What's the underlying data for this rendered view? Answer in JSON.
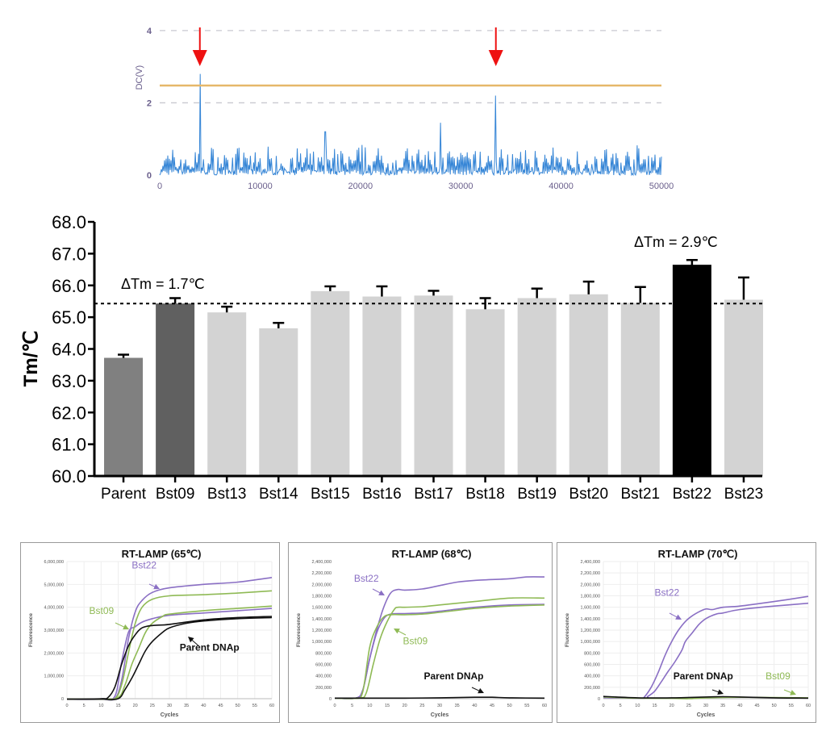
{
  "colors": {
    "signal_line": "#1f78d1",
    "signal_line_light": "#7fb6ea",
    "threshold": "#e6b86a",
    "arrow_red": "#ee1111",
    "axis_purple": "#6a5f8c",
    "bar_parent": "#808080",
    "bar_bst09": "#606060",
    "bar_default": "#d3d3d3",
    "bar_bst22": "#000000",
    "bst22_purple": "#8a6fc4",
    "bst09_green": "#8fba55",
    "parent_black": "#111111"
  },
  "chart_data": [
    {
      "id": "signal",
      "type": "line",
      "title": "",
      "xlabel": "",
      "ylabel": "DC(V)",
      "xlim": [
        0,
        50000
      ],
      "ylim": [
        0,
        4.4
      ],
      "xticks": [
        0,
        10000,
        20000,
        30000,
        40000,
        50000
      ],
      "xtick_labels": [
        "0",
        "10000",
        "20000",
        "30000",
        "40000",
        "50000"
      ],
      "yticks": [
        0,
        2,
        4
      ],
      "ytick_labels": [
        "0",
        "2",
        "4"
      ],
      "grid": "horizontal-dashed",
      "threshold": 2.48,
      "noise_baseline_max": 0.9,
      "peaks": [
        {
          "x": 4000,
          "y": 2.8,
          "marked": true
        },
        {
          "x": 16500,
          "y": 1.2,
          "marked": false
        },
        {
          "x": 28000,
          "y": 1.45,
          "marked": false
        },
        {
          "x": 33500,
          "y": 2.2,
          "marked": true
        }
      ]
    },
    {
      "id": "tm-bars",
      "type": "bar",
      "title": "",
      "xlabel": "",
      "ylabel": "Tm/℃",
      "ylim": [
        60,
        68
      ],
      "yticks": [
        60,
        61,
        62,
        63,
        64,
        65,
        66,
        67,
        68
      ],
      "ytick_labels": [
        "60.0",
        "61.0",
        "62.0",
        "63.0",
        "64.0",
        "65.0",
        "66.0",
        "67.0",
        "68.0"
      ],
      "categories": [
        "Parent",
        "Bst09",
        "Bst13",
        "Bst14",
        "Bst15",
        "Bst16",
        "Bst17",
        "Bst18",
        "Bst19",
        "Bst20",
        "Bst21",
        "Bst22",
        "Bst23"
      ],
      "values": [
        63.72,
        65.43,
        65.15,
        64.65,
        65.82,
        65.65,
        65.68,
        65.25,
        65.6,
        65.72,
        65.45,
        66.65,
        65.55
      ],
      "errors": [
        0.1,
        0.17,
        0.18,
        0.17,
        0.15,
        0.32,
        0.15,
        0.35,
        0.3,
        0.4,
        0.5,
        0.15,
        0.7
      ],
      "bar_color_keys": [
        "bar_parent",
        "bar_bst09",
        "bar_default",
        "bar_default",
        "bar_default",
        "bar_default",
        "bar_default",
        "bar_default",
        "bar_default",
        "bar_default",
        "bar_default",
        "bar_bst22",
        "bar_default"
      ],
      "reference_line": 65.43,
      "annotations": [
        {
          "text": "ΔTm = 1.7℃",
          "near": "Bst09"
        },
        {
          "text": "ΔTm = 2.9℃",
          "near": "Bst22"
        }
      ],
      "grid": false
    },
    {
      "id": "lamp65",
      "type": "line",
      "title": "RT-LAMP (65℃)",
      "xlabel": "Cycles",
      "ylabel": "Fluorescence",
      "xlim": [
        0,
        60
      ],
      "ylim": [
        0,
        6000000
      ],
      "xticks": [
        0,
        5,
        10,
        15,
        20,
        25,
        30,
        35,
        40,
        45,
        50,
        55,
        60
      ],
      "yticks": [
        0,
        1000000,
        2000000,
        3000000,
        4000000,
        5000000,
        6000000
      ],
      "ytick_labels": [
        "0",
        "1,000,000",
        "2,000,000",
        "3,000,000",
        "4,000,000",
        "5,000,000",
        "6,000,000"
      ],
      "grid": true,
      "series": [
        {
          "name": "Bst22",
          "color_key": "bst22_purple",
          "x": [
            0,
            10,
            14,
            16,
            18,
            20,
            22,
            25,
            30,
            40,
            50,
            60
          ],
          "y": [
            -20000,
            -20000,
            0,
            800000,
            2600000,
            3800000,
            4300000,
            4650000,
            4850000,
            5000000,
            5100000,
            5300000
          ]
        },
        {
          "name": "Bst22",
          "color_key": "bst22_purple",
          "x": [
            0,
            10,
            14,
            16,
            18,
            20,
            22,
            25,
            30,
            40,
            50,
            60
          ],
          "y": [
            -20000,
            -20000,
            100000,
            1600000,
            2900000,
            3150000,
            3350000,
            3500000,
            3650000,
            3750000,
            3850000,
            3950000
          ]
        },
        {
          "name": "Bst09",
          "color_key": "bst09_green",
          "x": [
            0,
            10,
            14,
            16,
            18,
            20,
            22,
            25,
            30,
            40,
            50,
            60
          ],
          "y": [
            -20000,
            -20000,
            0,
            600000,
            2000000,
            3300000,
            4000000,
            4350000,
            4500000,
            4550000,
            4620000,
            4720000
          ]
        },
        {
          "name": "Bst09",
          "color_key": "bst09_green",
          "x": [
            0,
            10,
            15,
            17,
            19,
            21,
            23,
            25,
            28,
            30,
            40,
            50,
            60
          ],
          "y": [
            -20000,
            -20000,
            50000,
            600000,
            1500000,
            2200000,
            2900000,
            3300000,
            3600000,
            3700000,
            3850000,
            3950000,
            4050000
          ]
        },
        {
          "name": "Parent DNAp",
          "color_key": "parent_black",
          "x": [
            0,
            10,
            12,
            14,
            16,
            18,
            20,
            22,
            25,
            30,
            40,
            50,
            60
          ],
          "y": [
            -20000,
            0,
            50000,
            500000,
            1500000,
            2300000,
            2800000,
            3100000,
            3200000,
            3250000,
            3450000,
            3550000,
            3600000
          ]
        },
        {
          "name": "Parent DNAp",
          "color_key": "parent_black",
          "x": [
            0,
            10,
            15,
            17,
            19,
            21,
            23,
            25,
            28,
            30,
            35,
            40,
            50,
            60
          ],
          "y": [
            -20000,
            -20000,
            0,
            400000,
            900000,
            1500000,
            2100000,
            2500000,
            2900000,
            3100000,
            3300000,
            3400000,
            3500000,
            3550000
          ]
        }
      ],
      "labels": [
        {
          "text": "Bst22",
          "color_key": "bst22_purple",
          "x": 19,
          "y": 5700000
        },
        {
          "text": "Bst09",
          "color_key": "bst09_green",
          "x": 6.5,
          "y": 3700000
        },
        {
          "text": "Parent DNAp",
          "color_key": "parent_black",
          "x": 33,
          "y": 2100000
        }
      ]
    },
    {
      "id": "lamp68",
      "type": "line",
      "title": "RT-LAMP (68℃)",
      "xlabel": "Cycles",
      "ylabel": "Fluorescence",
      "xlim": [
        0,
        60
      ],
      "ylim": [
        0,
        2400000
      ],
      "xticks": [
        0,
        5,
        10,
        15,
        20,
        25,
        30,
        35,
        40,
        45,
        50,
        55,
        60
      ],
      "yticks": [
        0,
        200000,
        400000,
        600000,
        800000,
        1000000,
        1200000,
        1400000,
        1600000,
        1800000,
        2000000,
        2200000,
        2400000
      ],
      "ytick_labels": [
        "0",
        "200,000",
        "400,000",
        "600,000",
        "800,000",
        "1,000,000",
        "1,200,000",
        "1,400,000",
        "1,600,000",
        "1,800,000",
        "2,000,000",
        "2,200,000",
        "2,400,000"
      ],
      "grid": false,
      "series": [
        {
          "name": "Bst22",
          "color_key": "bst22_purple",
          "x": [
            0,
            6,
            8,
            10,
            12,
            14,
            16,
            18,
            20,
            25,
            30,
            35,
            40,
            50,
            55,
            60
          ],
          "y": [
            10000,
            10000,
            150000,
            700000,
            1200000,
            1600000,
            1850000,
            1910000,
            1900000,
            1920000,
            1980000,
            2040000,
            2070000,
            2100000,
            2130000,
            2130000
          ]
        },
        {
          "name": "Bst22",
          "color_key": "bst22_purple",
          "x": [
            0,
            6,
            8,
            10,
            12,
            14,
            16,
            20,
            25,
            30,
            40,
            50,
            60
          ],
          "y": [
            10000,
            10000,
            150000,
            700000,
            1150000,
            1400000,
            1480000,
            1490000,
            1500000,
            1530000,
            1600000,
            1640000,
            1650000
          ]
        },
        {
          "name": "Bst09",
          "color_key": "bst09_green",
          "x": [
            0,
            7,
            9,
            11,
            13,
            15,
            17,
            18,
            20,
            25,
            30,
            40,
            50,
            60
          ],
          "y": [
            10000,
            10000,
            100000,
            600000,
            1050000,
            1350000,
            1560000,
            1600000,
            1600000,
            1610000,
            1640000,
            1700000,
            1760000,
            1760000
          ]
        },
        {
          "name": "Bst09",
          "color_key": "bst09_green",
          "x": [
            0,
            6,
            8,
            10,
            12,
            14,
            16,
            20,
            25,
            30,
            40,
            50,
            60
          ],
          "y": [
            10000,
            10000,
            120000,
            900000,
            1250000,
            1430000,
            1470000,
            1470000,
            1480000,
            1510000,
            1580000,
            1620000,
            1640000
          ]
        },
        {
          "name": "Parent DNAp",
          "color_key": "parent_black",
          "x": [
            0,
            10,
            20,
            30,
            40,
            45,
            50,
            60
          ],
          "y": [
            10000,
            10000,
            10000,
            15000,
            25000,
            25000,
            15000,
            10000
          ]
        }
      ],
      "labels": [
        {
          "text": "Bst22",
          "color_key": "bst22_purple",
          "x": 5.5,
          "y": 2050000
        },
        {
          "text": "Bst09",
          "color_key": "bst09_green",
          "x": 19.5,
          "y": 950000
        },
        {
          "text": "Parent DNAp",
          "color_key": "parent_black",
          "x": 25.5,
          "y": 340000
        }
      ]
    },
    {
      "id": "lamp70",
      "type": "line",
      "title": "RT-LAMP (70℃)",
      "xlabel": "Cycles",
      "ylabel": "Fluorescence",
      "xlim": [
        0,
        60
      ],
      "ylim": [
        0,
        2400000
      ],
      "xticks": [
        0,
        5,
        10,
        15,
        20,
        25,
        30,
        35,
        40,
        45,
        50,
        55,
        60
      ],
      "yticks": [
        0,
        200000,
        400000,
        600000,
        800000,
        1000000,
        1200000,
        1400000,
        1600000,
        1800000,
        2000000,
        2200000,
        2400000
      ],
      "ytick_labels": [
        "0",
        "200,000",
        "400,000",
        "600,000",
        "800,000",
        "1,000,000",
        "1,200,000",
        "1,400,000",
        "1,600,000",
        "1,800,000",
        "2,000,000",
        "2,200,000",
        "2,400,000"
      ],
      "grid": true,
      "series": [
        {
          "name": "Bst22",
          "color_key": "bst22_purple",
          "x": [
            0,
            11,
            12,
            14,
            16,
            18,
            20,
            22,
            24,
            26,
            28,
            30,
            32,
            35,
            40,
            50,
            60
          ],
          "y": [
            20000,
            10000,
            30000,
            200000,
            450000,
            750000,
            1000000,
            1200000,
            1350000,
            1450000,
            1520000,
            1570000,
            1560000,
            1600000,
            1620000,
            1700000,
            1790000
          ]
        },
        {
          "name": "Bst22",
          "color_key": "bst22_purple",
          "x": [
            0,
            12,
            13,
            15,
            17,
            19,
            21,
            23,
            24,
            26,
            28,
            30,
            33,
            35,
            40,
            50,
            60
          ],
          "y": [
            20000,
            10000,
            40000,
            130000,
            300000,
            480000,
            650000,
            850000,
            1000000,
            1150000,
            1300000,
            1400000,
            1480000,
            1500000,
            1560000,
            1620000,
            1670000
          ]
        },
        {
          "name": "Bst09",
          "color_key": "bst09_green",
          "x": [
            0,
            10,
            20,
            25,
            30,
            40,
            50,
            60
          ],
          "y": [
            30000,
            10000,
            5000,
            0,
            15000,
            25000,
            20000,
            15000
          ]
        },
        {
          "name": "Parent DNAp",
          "color_key": "parent_black",
          "x": [
            0,
            10,
            20,
            30,
            35,
            40,
            50,
            60
          ],
          "y": [
            40000,
            15000,
            15000,
            30000,
            35000,
            30000,
            15000,
            10000
          ]
        }
      ],
      "labels": [
        {
          "text": "Bst22",
          "color_key": "bst22_purple",
          "x": 15,
          "y": 1800000
        },
        {
          "text": "Parent DNAp",
          "color_key": "parent_black",
          "x": 20.5,
          "y": 340000
        },
        {
          "text": "Bst09",
          "color_key": "bst09_green",
          "x": 47.5,
          "y": 340000
        }
      ]
    }
  ]
}
